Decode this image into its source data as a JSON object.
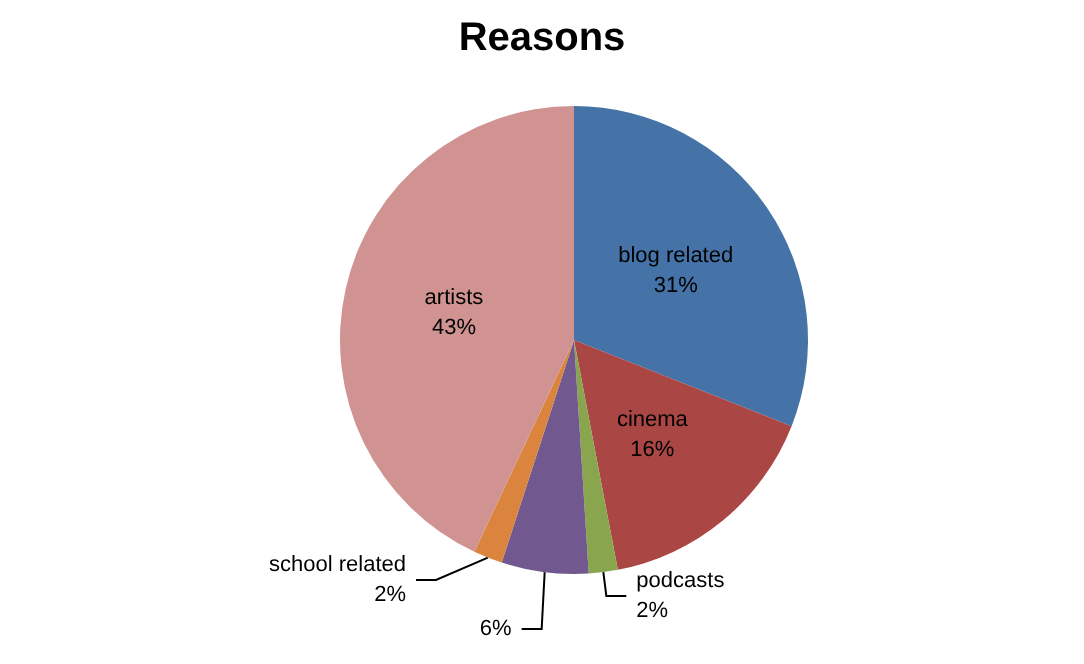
{
  "chart_data": {
    "type": "pie",
    "title": "Reasons",
    "categories": [
      "blog related",
      "cinema",
      "podcasts",
      null,
      "school related",
      "artists"
    ],
    "values": [
      31,
      16,
      2,
      6,
      2,
      43
    ],
    "colors": [
      "#4572a7",
      "#aa4643",
      "#89a54e",
      "#71588f",
      "#db843d",
      "#d09392"
    ],
    "value_labels": [
      "31%",
      "16%",
      "2%",
      "6%",
      "2%",
      "43%"
    ],
    "legend": false
  }
}
